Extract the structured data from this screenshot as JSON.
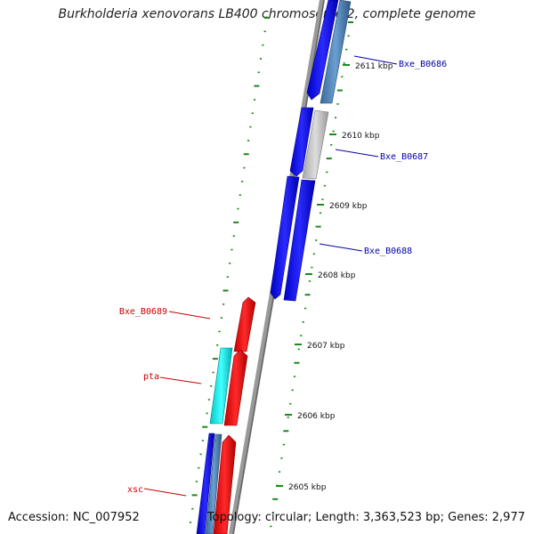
{
  "title": "Burkholderia xenovorans LB400 chromosome 2, complete genome",
  "footer": {
    "accession": "Accession: NC_007952",
    "summary": "Topology: circular; Length: 3,363,523 bp; Genes: 2,977"
  },
  "colors": {
    "forward_gene": "#1010ee",
    "reverse_gene": "#ee1111",
    "cyan_gene": "#22dddd",
    "steelblue_gene": "#4a7fb5",
    "grey_gene": "#bbbbbb",
    "backbone": "#888888",
    "tick": "#1a8a1a",
    "label_forward": "#0000aa",
    "label_reverse": "#cc0000"
  },
  "ticks": [
    {
      "label": "2611 kbp"
    },
    {
      "label": "2610 kbp"
    },
    {
      "label": "2609 kbp"
    },
    {
      "label": "2608 kbp"
    },
    {
      "label": "2607 kbp"
    },
    {
      "label": "2606 kbp"
    },
    {
      "label": "2605 kbp"
    }
  ],
  "gene_labels": [
    {
      "id": "g686",
      "text": "Bxe_B0686",
      "strand": "forward"
    },
    {
      "id": "g687",
      "text": "Bxe_B0687",
      "strand": "forward"
    },
    {
      "id": "g688",
      "text": "Bxe_B0688",
      "strand": "forward"
    },
    {
      "id": "g689",
      "text": "Bxe_B0689",
      "strand": "reverse"
    },
    {
      "id": "pta",
      "text": "pta",
      "strand": "reverse"
    },
    {
      "id": "xsc",
      "text": "xsc",
      "strand": "reverse"
    }
  ]
}
